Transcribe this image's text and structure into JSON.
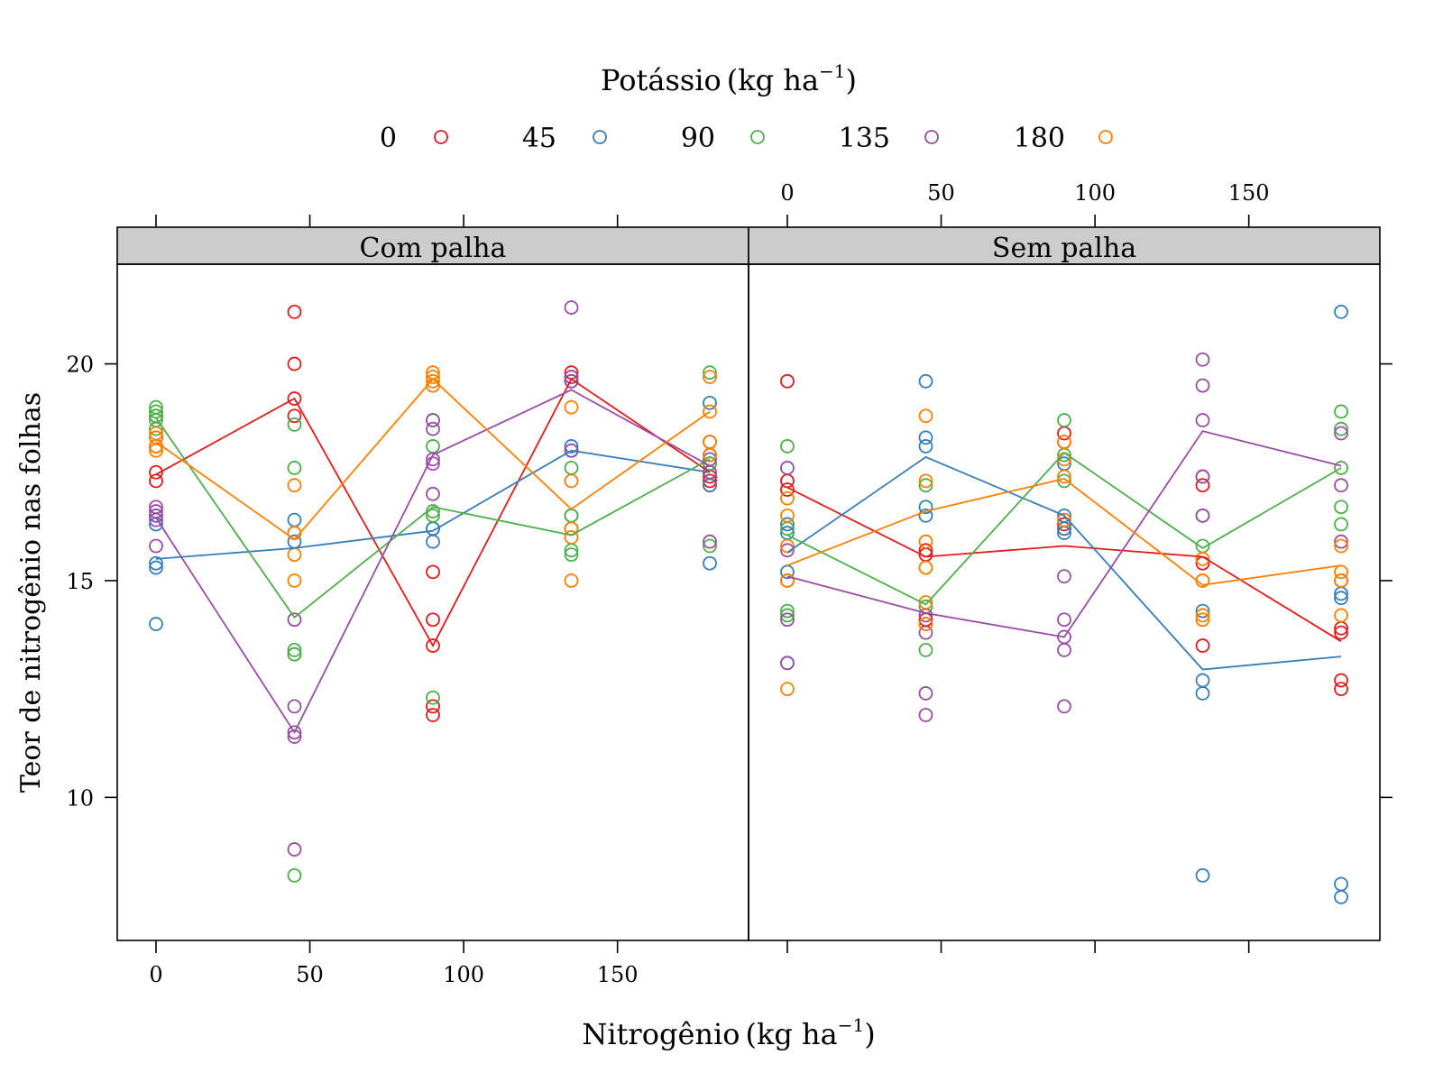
{
  "chart_data": {
    "type": "scatter",
    "legend": {
      "title_main": "Potássio",
      "title_unit": "kg ha",
      "title_exponent": "−1",
      "placement": "top"
    },
    "xlabel_main": "Nitrogênio",
    "xlabel_unit": "kg ha",
    "xlabel_exponent": "−1",
    "ylabel": "Teor de nitrogênio nas folhas",
    "x_ticks": [
      0,
      50,
      100,
      150
    ],
    "y_ticks": [
      10,
      15,
      20
    ],
    "xlim": [
      -12.6,
      192.6
    ],
    "ylim": [
      6.7,
      22.3
    ],
    "x_levels": [
      0,
      45,
      90,
      135,
      180
    ],
    "series": [
      {
        "name": "0",
        "color": "#e41a1c"
      },
      {
        "name": "45",
        "color": "#377eb8"
      },
      {
        "name": "90",
        "color": "#4daf4a"
      },
      {
        "name": "135",
        "color": "#984ea3"
      },
      {
        "name": "180",
        "color": "#ff7f00"
      }
    ],
    "panels": [
      {
        "title": "Com palha",
        "points": [
          [
            [
              17.3,
              17.5,
              18.1,
              18.3,
              18.8
            ],
            [
              18.8,
              19.2,
              20.0,
              21.2
            ],
            [
              11.9,
              12.1,
              13.5,
              14.1,
              15.2
            ],
            [
              19.6,
              19.7,
              19.8
            ],
            [
              17.2,
              17.3,
              17.4,
              17.9,
              18.2
            ]
          ],
          [
            [
              14.0,
              15.3,
              15.4,
              16.3,
              16.5
            ],
            [
              13.3,
              15.9,
              16.1,
              16.4
            ],
            [
              15.9,
              16.2,
              16.2
            ],
            [
              16.2,
              16.5,
              18.0,
              18.1
            ],
            [
              15.4,
              17.2,
              17.5,
              17.7,
              17.9,
              19.1
            ]
          ],
          [
            [
              18.5,
              18.7,
              18.8,
              18.9,
              19.0
            ],
            [
              8.2,
              13.3,
              13.4,
              17.6,
              18.6
            ],
            [
              12.3,
              16.5,
              16.6,
              18.1,
              18.7
            ],
            [
              15.6,
              15.7,
              16.5,
              17.6
            ],
            [
              15.8,
              17.7,
              19.8
            ]
          ],
          [
            [
              15.8,
              16.4,
              16.5,
              16.6,
              16.7
            ],
            [
              8.8,
              11.4,
              11.5,
              12.1,
              14.1
            ],
            [
              17.0,
              17.7,
              17.8,
              18.5,
              18.7
            ],
            [
              18.0,
              19.6,
              19.7,
              21.3
            ],
            [
              15.9,
              17.5,
              17.8
            ]
          ],
          [
            [
              18.0,
              18.1,
              18.1,
              18.3,
              18.4
            ],
            [
              15.0,
              15.6,
              16.1,
              17.2
            ],
            [
              19.5,
              19.6,
              19.7,
              19.8
            ],
            [
              15.0,
              16.0,
              16.2,
              17.3,
              19.0
            ],
            [
              17.9,
              18.2,
              18.9,
              19.7
            ]
          ]
        ],
        "means": [
          [
            17.45,
            19.2,
            13.5,
            19.65,
            17.5
          ],
          [
            15.5,
            15.75,
            16.15,
            18.0,
            17.5
          ],
          [
            18.75,
            14.15,
            16.7,
            16.05,
            17.8
          ],
          [
            16.45,
            11.5,
            17.9,
            19.4,
            17.65
          ],
          [
            18.2,
            15.95,
            19.65,
            16.65,
            18.9
          ]
        ]
      },
      {
        "title": "Sem palha",
        "points": [
          [
            [
              15.0,
              17.1,
              17.3,
              19.6
            ],
            [
              14.1,
              15.6,
              15.7
            ],
            [
              16.2,
              16.3,
              18.2,
              18.4
            ],
            [
              13.5,
              15.4,
              17.2,
              17.4
            ],
            [
              12.5,
              12.7,
              13.8,
              13.9,
              15.0
            ]
          ],
          [
            [
              13.1,
              15.2,
              16.1,
              16.3
            ],
            [
              16.5,
              16.7,
              18.1,
              18.3,
              19.6
            ],
            [
              16.1,
              16.2,
              16.5,
              17.7
            ],
            [
              8.2,
              12.4,
              12.7,
              14.3
            ],
            [
              7.7,
              8.0,
              14.6,
              14.7,
              21.2
            ]
          ],
          [
            [
              14.2,
              14.3,
              16.2,
              18.1
            ],
            [
              13.4,
              14.4,
              15.3,
              17.2
            ],
            [
              17.3,
              17.9,
              18.7
            ],
            [
              15.0,
              15.8,
              16.5
            ],
            [
              16.3,
              16.7,
              17.6,
              18.5,
              18.9
            ]
          ],
          [
            [
              13.1,
              14.1,
              15.7,
              17.6
            ],
            [
              11.9,
              12.4,
              13.8,
              14.0,
              14.2
            ],
            [
              12.1,
              13.4,
              13.7,
              14.1,
              15.1
            ],
            [
              16.5,
              17.4,
              18.7,
              19.5,
              20.1
            ],
            [
              15.9,
              17.2,
              18.4
            ]
          ],
          [
            [
              12.5,
              15.0,
              15.8,
              16.5,
              16.9
            ],
            [
              14.0,
              14.5,
              15.3,
              15.9,
              17.3,
              18.8
            ],
            [
              16.4,
              17.4,
              17.8,
              18.2
            ],
            [
              14.1,
              14.2,
              15.0,
              15.5
            ],
            [
              14.2,
              15.0,
              15.2,
              15.8
            ]
          ]
        ],
        "means": [
          [
            17.15,
            15.55,
            15.8,
            15.55,
            13.6
          ],
          [
            15.65,
            17.85,
            16.5,
            12.95,
            13.25
          ],
          [
            16.05,
            14.45,
            17.95,
            15.75,
            17.6
          ],
          [
            15.1,
            14.25,
            13.7,
            18.45,
            17.65
          ],
          [
            15.35,
            16.6,
            17.35,
            14.9,
            15.35
          ]
        ]
      }
    ]
  }
}
